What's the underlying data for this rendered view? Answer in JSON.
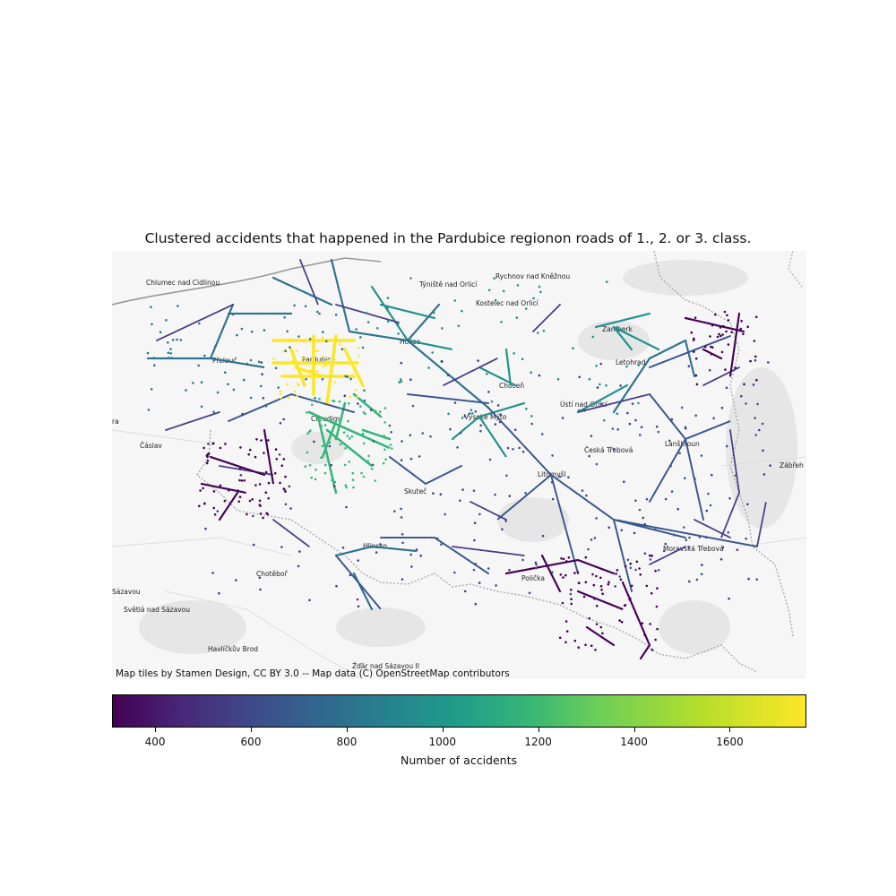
{
  "title": "Clustered accidents that happened in the Pardubice regionon roads of 1., 2. or 3. class.",
  "attribution": "Map tiles by Stamen Design, CC BY 3.0 -- Map data (C) OpenStreetMap contributors",
  "colorbar": {
    "label": "Number of accidents",
    "range": [
      310,
      1760
    ],
    "ticks": [
      "400",
      "600",
      "800",
      "1000",
      "1200",
      "1400",
      "1600"
    ],
    "colormap": "viridis"
  },
  "towns": [
    "Chlumec nad Cidlinou",
    "Týniště nad Orlicí",
    "Rychnov nad Kněžnou",
    "Kostelec nad Orlicí",
    "Holice",
    "Pardubice",
    "Přelouč",
    "Choceň",
    "Žamberk",
    "Letohrad",
    "Ústí nad Orlicí",
    "Vysoké Mýto",
    "Chrudim",
    "Česká Třebová",
    "Lanškroun",
    "Čáslav",
    "Zábřeh",
    "Litomyšl",
    "Skuteč",
    "Hlinsko",
    "Moravská Třebová",
    "Polička",
    "Chotěboř",
    "Sázavou",
    "Světlá nad Sázavou",
    "Havlíčkův Brod",
    "Žďár nad Sázavou II",
    "ra"
  ],
  "legend_colors": {
    "c350": "#440154",
    "c500": "#433e85",
    "c650": "#39568c",
    "c800": "#2c728e",
    "c950": "#21918c",
    "c1250": "#35b779",
    "c1760": "#fde725"
  }
}
